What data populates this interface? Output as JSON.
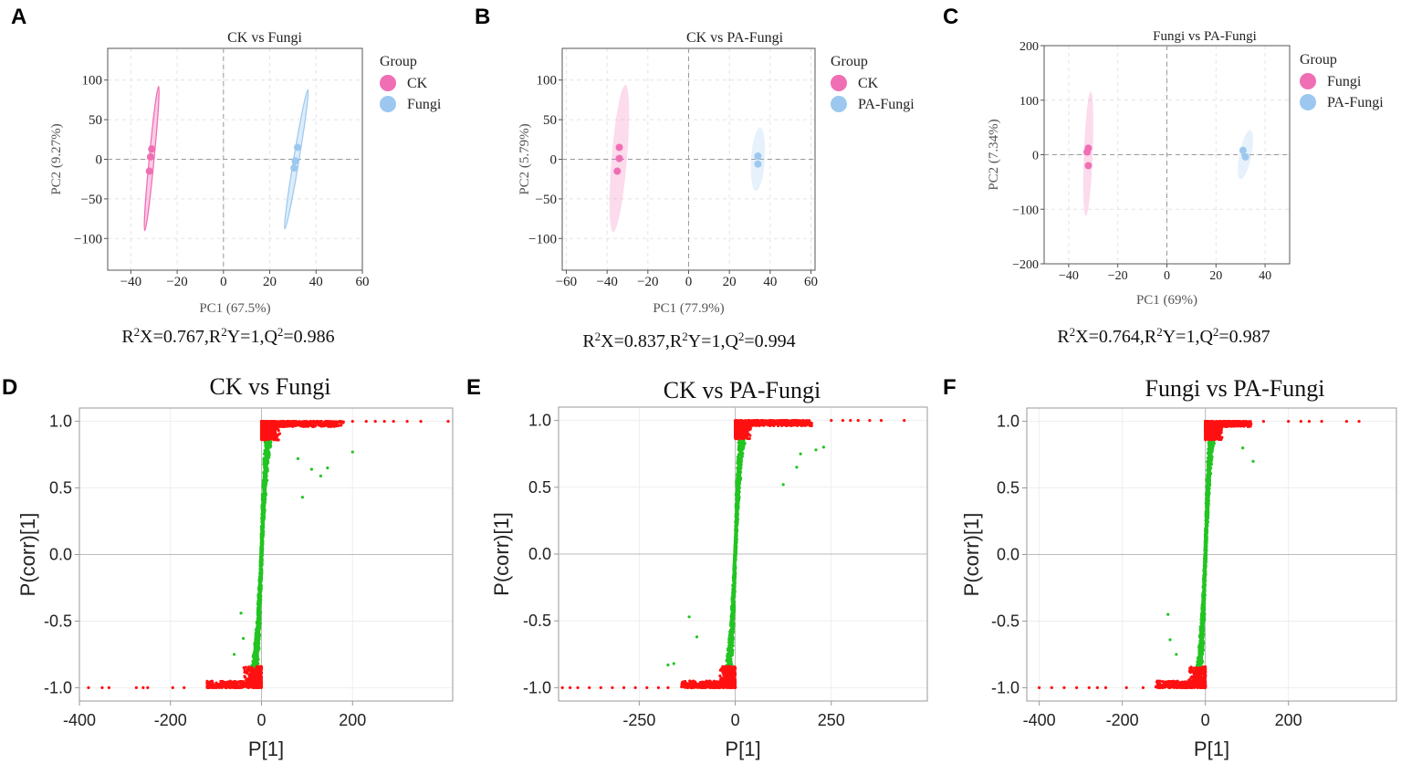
{
  "colors": {
    "pink": "#f06eb4",
    "blue": "#9cc8f0",
    "red": "#ff1111",
    "green": "#22c422",
    "axis": "#888888",
    "grid": "#e4e4e4"
  },
  "chart_data": [
    {
      "type": "scatter",
      "panel_label": "A",
      "title": "CK vs Fungi",
      "xlabel": "PC1 (67.5%)",
      "ylabel": "PC2 (9.27%)",
      "xlim": [
        -50,
        60
      ],
      "ylim": [
        -140,
        140
      ],
      "xticks": [
        -40,
        -20,
        0,
        20,
        40,
        60
      ],
      "xtick_labels": [
        "−40",
        "−20",
        "0",
        "20",
        "40",
        "60"
      ],
      "yticks": [
        -100,
        -50,
        0,
        50,
        100
      ],
      "ytick_labels": [
        "−100",
        "−50",
        "0",
        "50",
        "100"
      ],
      "legend_title": "Group",
      "series": [
        {
          "name": "CK",
          "color": "#f06eb4",
          "points": [
            [
              -31,
              13
            ],
            [
              -31.5,
              3
            ],
            [
              -32,
              -15
            ]
          ],
          "ellipse": {
            "from": [
              -34,
              -90
            ],
            "to": [
              -28,
              92
            ],
            "halfwidth": 0.9
          }
        },
        {
          "name": "Fungi",
          "color": "#9cc8f0",
          "points": [
            [
              32,
              15
            ],
            [
              31,
              -2
            ],
            [
              30.5,
              -11
            ]
          ],
          "ellipse": {
            "from": [
              26.5,
              -88
            ],
            "to": [
              36.5,
              88
            ],
            "halfwidth": 1.0
          }
        }
      ],
      "footnote": {
        "r2x": "0.767",
        "r2y": "1",
        "q2": "0.986"
      }
    },
    {
      "type": "scatter",
      "panel_label": "B",
      "title": "CK vs PA-Fungi",
      "xlabel": "PC1 (77.9%)",
      "ylabel": "PC2 (5.79%)",
      "xlim": [
        -62,
        62
      ],
      "ylim": [
        -140,
        140
      ],
      "xticks": [
        -60,
        -40,
        -20,
        0,
        20,
        40,
        60
      ],
      "xtick_labels": [
        "−60",
        "−40",
        "−20",
        "0",
        "20",
        "40",
        "60"
      ],
      "yticks": [
        -100,
        -50,
        0,
        50,
        100
      ],
      "ytick_labels": [
        "−100",
        "−50",
        "0",
        "50",
        "100"
      ],
      "legend_title": "Group",
      "series": [
        {
          "name": "CK",
          "color": "#f06eb4",
          "points": [
            [
              -34,
              15
            ],
            [
              -34,
              1
            ],
            [
              -35,
              -15
            ]
          ],
          "ellipse": {
            "from": [
              -37,
              -92
            ],
            "to": [
              -31,
              94
            ],
            "halfwidth": 2.8
          }
        },
        {
          "name": "PA-Fungi",
          "color": "#9cc8f0",
          "points": [
            [
              34,
              4
            ],
            [
              34,
              -6
            ]
          ],
          "ellipse": {
            "from": [
              33,
              -40
            ],
            "to": [
              35,
              40
            ],
            "halfwidth": 2.5
          }
        }
      ],
      "footnote": {
        "r2x": "0.837",
        "r2y": "1",
        "q2": "0.994"
      }
    },
    {
      "type": "scatter",
      "panel_label": "C",
      "title": "Fungi vs PA-Fungi",
      "xlabel": "PC1 (69%)",
      "ylabel": "PC2 (7.34%)",
      "xlim": [
        -50,
        50
      ],
      "ylim": [
        -200,
        200
      ],
      "xticks": [
        -40,
        -20,
        0,
        20,
        40
      ],
      "xtick_labels": [
        "−40",
        "−20",
        "0",
        "20",
        "40"
      ],
      "yticks": [
        -200,
        -100,
        0,
        100,
        200
      ],
      "ytick_labels": [
        "−200",
        "−100",
        "0",
        "100",
        "200"
      ],
      "legend_title": "Group",
      "series": [
        {
          "name": "Fungi",
          "color": "#f06eb4",
          "points": [
            [
              -32,
              12
            ],
            [
              -32.5,
              5
            ],
            [
              -32,
              -20
            ]
          ],
          "ellipse": {
            "from": [
              -33,
              -112
            ],
            "to": [
              -31,
              116
            ],
            "halfwidth": 1.6
          }
        },
        {
          "name": "PA-Fungi",
          "color": "#9cc8f0",
          "points": [
            [
              31,
              8
            ],
            [
              32,
              -4
            ]
          ],
          "ellipse": {
            "from": [
              30,
              -45
            ],
            "to": [
              34,
              45
            ],
            "halfwidth": 2.2
          }
        }
      ],
      "footnote": {
        "r2x": "0.764",
        "r2y": "1",
        "q2": "0.987"
      }
    },
    {
      "type": "scatter",
      "panel_label": "D",
      "title": "CK vs Fungi",
      "xlabel": "P[1]",
      "ylabel": "P(corr)[1]",
      "xlim": [
        -400,
        420
      ],
      "ylim": [
        -1.1,
        1.1
      ],
      "xticks": [
        -400,
        -200,
        0,
        200
      ],
      "xtick_labels": [
        "-400",
        "-200",
        "0",
        "200"
      ],
      "yticks": [
        1.0,
        0.5,
        0.0,
        -0.5,
        -1.0
      ],
      "ytick_labels": [
        "1.0",
        "0.5",
        "0.0",
        "-0.5",
        "-1.0"
      ],
      "s_curve": {
        "width_scale": 12,
        "red_high_max": 180,
        "red_low_min": -120
      },
      "red_high_outliers": [
        [
          200,
          1.0
        ],
        [
          230,
          1.0
        ],
        [
          250,
          1.0
        ],
        [
          270,
          1.0
        ],
        [
          290,
          1.0
        ],
        [
          320,
          1.0
        ],
        [
          350,
          1.0
        ],
        [
          410,
          1.0
        ]
      ],
      "red_low_outliers": [
        [
          -380,
          -1.0
        ],
        [
          -350,
          -1.0
        ],
        [
          -335,
          -1.0
        ],
        [
          -275,
          -1.0
        ],
        [
          -260,
          -1.0
        ],
        [
          -250,
          -1.0
        ],
        [
          -195,
          -1.0
        ],
        [
          -170,
          -1.0
        ]
      ],
      "green_outliers": [
        [
          200,
          0.77
        ],
        [
          110,
          0.64
        ],
        [
          145,
          0.65
        ],
        [
          130,
          0.59
        ],
        [
          90,
          0.43
        ],
        [
          80,
          0.72
        ],
        [
          -45,
          -0.44
        ],
        [
          -40,
          -0.63
        ],
        [
          -60,
          -0.75
        ]
      ]
    },
    {
      "type": "scatter",
      "panel_label": "E",
      "title": "CK vs PA-Fungi",
      "xlabel": "P[1]",
      "ylabel": "P(corr)[1]",
      "xlim": [
        -460,
        500
      ],
      "ylim": [
        -1.1,
        1.1
      ],
      "xticks": [
        -250,
        0,
        250
      ],
      "xtick_labels": [
        "-250",
        "0",
        "250"
      ],
      "yticks": [
        1.0,
        0.5,
        0.0,
        -0.5,
        -1.0
      ],
      "ytick_labels": [
        "1.0",
        "0.5",
        "0.0",
        "-0.5",
        "-1.0"
      ],
      "s_curve": {
        "width_scale": 14,
        "red_high_max": 200,
        "red_low_min": -140
      },
      "red_high_outliers": [
        [
          250,
          1.0
        ],
        [
          280,
          1.0
        ],
        [
          300,
          1.0
        ],
        [
          320,
          1.0
        ],
        [
          350,
          1.0
        ],
        [
          380,
          1.0
        ],
        [
          440,
          1.0
        ]
      ],
      "red_low_outliers": [
        [
          -450,
          -1.0
        ],
        [
          -430,
          -1.0
        ],
        [
          -410,
          -1.0
        ],
        [
          -380,
          -1.0
        ],
        [
          -350,
          -1.0
        ],
        [
          -320,
          -1.0
        ],
        [
          -290,
          -1.0
        ],
        [
          -260,
          -1.0
        ],
        [
          -230,
          -1.0
        ],
        [
          -200,
          -1.0
        ],
        [
          -175,
          -1.0
        ]
      ],
      "green_outliers": [
        [
          230,
          0.8
        ],
        [
          210,
          0.78
        ],
        [
          170,
          0.75
        ],
        [
          160,
          0.65
        ],
        [
          125,
          0.52
        ],
        [
          -160,
          -0.82
        ],
        [
          -175,
          -0.83
        ],
        [
          -120,
          -0.47
        ],
        [
          -100,
          -0.62
        ]
      ]
    },
    {
      "type": "scatter",
      "panel_label": "F",
      "title": "Fungi vs PA-Fungi",
      "xlabel": "P[1]",
      "ylabel": "P(corr)[1]",
      "xlim": [
        -430,
        460
      ],
      "ylim": [
        -1.1,
        1.1
      ],
      "xticks": [
        -400,
        -200,
        0,
        200
      ],
      "xtick_labels": [
        "-400",
        "-200",
        "0",
        "200"
      ],
      "yticks": [
        1.0,
        0.5,
        0.0,
        -0.5,
        -1.0
      ],
      "ytick_labels": [
        "1.0",
        "0.5",
        "0.0",
        "-0.5",
        "-1.0"
      ],
      "s_curve": {
        "width_scale": 12,
        "red_high_max": 110,
        "red_low_min": -120
      },
      "red_high_outliers": [
        [
          140,
          1.0
        ],
        [
          200,
          1.0
        ],
        [
          230,
          1.0
        ],
        [
          250,
          1.0
        ],
        [
          280,
          1.0
        ],
        [
          340,
          1.0
        ],
        [
          370,
          1.0
        ]
      ],
      "red_low_outliers": [
        [
          -400,
          -1.0
        ],
        [
          -370,
          -1.0
        ],
        [
          -340,
          -1.0
        ],
        [
          -310,
          -1.0
        ],
        [
          -280,
          -1.0
        ],
        [
          -260,
          -1.0
        ],
        [
          -240,
          -1.0
        ],
        [
          -190,
          -1.0
        ],
        [
          -150,
          -1.0
        ]
      ],
      "green_outliers": [
        [
          115,
          0.7
        ],
        [
          90,
          0.8
        ],
        [
          -90,
          -0.45
        ],
        [
          -85,
          -0.64
        ],
        [
          -70,
          -0.75
        ]
      ]
    }
  ]
}
